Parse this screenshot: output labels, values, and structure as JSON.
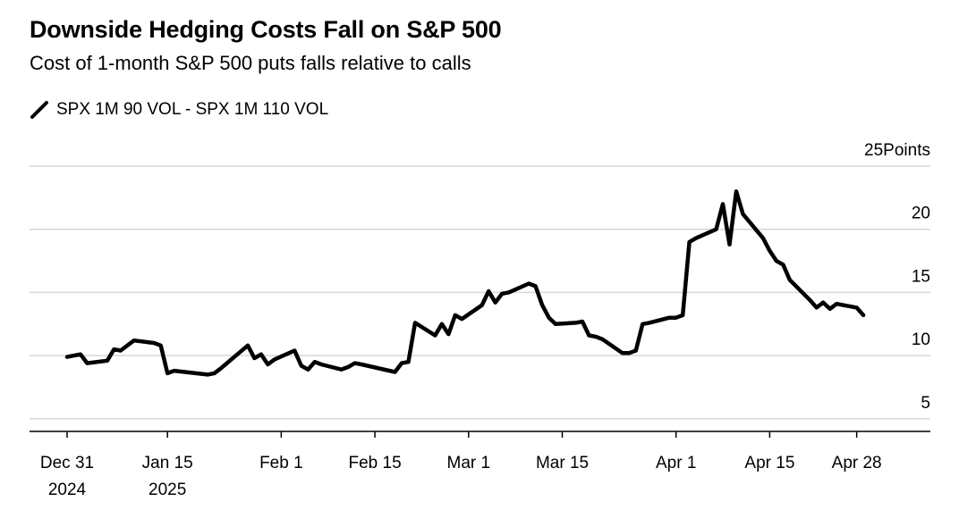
{
  "header": {
    "title": "Downside Hedging Costs Fall on S&P 500",
    "subtitle": "Cost of 1-month S&P 500 puts falls relative to calls"
  },
  "legend": {
    "series_name": "SPX 1M 90 VOL - SPX 1M 110 VOL"
  },
  "chart_data": {
    "type": "line",
    "title": "Downside Hedging Costs Fall on S&P 500",
    "subtitle": "Cost of 1-month S&P 500 puts falls relative to calls",
    "ylabel": "Points",
    "ylim": [
      4,
      25
    ],
    "yticks": [
      25,
      20,
      15,
      10,
      5
    ],
    "ytick_labels": [
      "25Points",
      "20",
      "15",
      "10",
      "5"
    ],
    "xlim": [
      "2024-12-31",
      "2025-05-05"
    ],
    "xticks": [
      {
        "date": "2024-12-31",
        "label1": "Dec 31",
        "label2": "2024"
      },
      {
        "date": "2025-01-15",
        "label1": "Jan 15",
        "label2": "2025"
      },
      {
        "date": "2025-02-01",
        "label1": "Feb 1",
        "label2": ""
      },
      {
        "date": "2025-02-15",
        "label1": "Feb 15",
        "label2": ""
      },
      {
        "date": "2025-03-01",
        "label1": "Mar 1",
        "label2": ""
      },
      {
        "date": "2025-03-15",
        "label1": "Mar 15",
        "label2": ""
      },
      {
        "date": "2025-04-01",
        "label1": "Apr 1",
        "label2": ""
      },
      {
        "date": "2025-04-15",
        "label1": "Apr 15",
        "label2": ""
      },
      {
        "date": "2025-04-28",
        "label1": "Apr 28",
        "label2": ""
      }
    ],
    "grid": true,
    "legend_position": "top-left",
    "line_color": "#000000",
    "series": [
      {
        "name": "SPX 1M 90 VOL - SPX 1M 110 VOL",
        "points": [
          [
            "2024-12-31",
            9.9
          ],
          [
            "2025-01-02",
            10.1
          ],
          [
            "2025-01-03",
            9.4
          ],
          [
            "2025-01-06",
            9.6
          ],
          [
            "2025-01-07",
            10.5
          ],
          [
            "2025-01-08",
            10.4
          ],
          [
            "2025-01-10",
            11.2
          ],
          [
            "2025-01-13",
            11.0
          ],
          [
            "2025-01-14",
            10.8
          ],
          [
            "2025-01-15",
            8.6
          ],
          [
            "2025-01-16",
            8.8
          ],
          [
            "2025-01-21",
            8.5
          ],
          [
            "2025-01-22",
            8.6
          ],
          [
            "2025-01-23",
            9.0
          ],
          [
            "2025-01-27",
            10.8
          ],
          [
            "2025-01-28",
            9.8
          ],
          [
            "2025-01-29",
            10.1
          ],
          [
            "2025-01-30",
            9.3
          ],
          [
            "2025-01-31",
            9.7
          ],
          [
            "2025-02-03",
            10.4
          ],
          [
            "2025-02-04",
            9.2
          ],
          [
            "2025-02-05",
            8.9
          ],
          [
            "2025-02-06",
            9.5
          ],
          [
            "2025-02-07",
            9.3
          ],
          [
            "2025-02-10",
            8.9
          ],
          [
            "2025-02-11",
            9.1
          ],
          [
            "2025-02-12",
            9.4
          ],
          [
            "2025-02-13",
            9.3
          ],
          [
            "2025-02-18",
            8.7
          ],
          [
            "2025-02-19",
            9.4
          ],
          [
            "2025-02-20",
            9.5
          ],
          [
            "2025-02-21",
            12.6
          ],
          [
            "2025-02-24",
            11.6
          ],
          [
            "2025-02-25",
            12.5
          ],
          [
            "2025-02-26",
            11.7
          ],
          [
            "2025-02-27",
            13.2
          ],
          [
            "2025-02-28",
            12.9
          ],
          [
            "2025-03-03",
            14.0
          ],
          [
            "2025-03-04",
            15.1
          ],
          [
            "2025-03-05",
            14.2
          ],
          [
            "2025-03-06",
            14.9
          ],
          [
            "2025-03-07",
            15.0
          ],
          [
            "2025-03-10",
            15.7
          ],
          [
            "2025-03-11",
            15.5
          ],
          [
            "2025-03-12",
            14.0
          ],
          [
            "2025-03-13",
            13.0
          ],
          [
            "2025-03-14",
            12.5
          ],
          [
            "2025-03-17",
            12.6
          ],
          [
            "2025-03-18",
            12.7
          ],
          [
            "2025-03-19",
            11.6
          ],
          [
            "2025-03-20",
            11.5
          ],
          [
            "2025-03-21",
            11.3
          ],
          [
            "2025-03-24",
            10.2
          ],
          [
            "2025-03-25",
            10.2
          ],
          [
            "2025-03-26",
            10.4
          ],
          [
            "2025-03-27",
            12.5
          ],
          [
            "2025-03-28",
            12.6
          ],
          [
            "2025-03-31",
            13.0
          ],
          [
            "2025-04-01",
            13.0
          ],
          [
            "2025-04-02",
            13.2
          ],
          [
            "2025-04-03",
            19.0
          ],
          [
            "2025-04-04",
            19.3
          ],
          [
            "2025-04-07",
            20.0
          ],
          [
            "2025-04-08",
            22.0
          ],
          [
            "2025-04-09",
            18.8
          ],
          [
            "2025-04-10",
            23.0
          ],
          [
            "2025-04-11",
            21.2
          ],
          [
            "2025-04-14",
            19.3
          ],
          [
            "2025-04-15",
            18.3
          ],
          [
            "2025-04-16",
            17.5
          ],
          [
            "2025-04-17",
            17.2
          ],
          [
            "2025-04-18",
            16.0
          ],
          [
            "2025-04-21",
            14.4
          ],
          [
            "2025-04-22",
            13.8
          ],
          [
            "2025-04-23",
            14.2
          ],
          [
            "2025-04-24",
            13.7
          ],
          [
            "2025-04-25",
            14.1
          ],
          [
            "2025-04-28",
            13.8
          ],
          [
            "2025-04-29",
            13.2
          ]
        ]
      }
    ]
  }
}
